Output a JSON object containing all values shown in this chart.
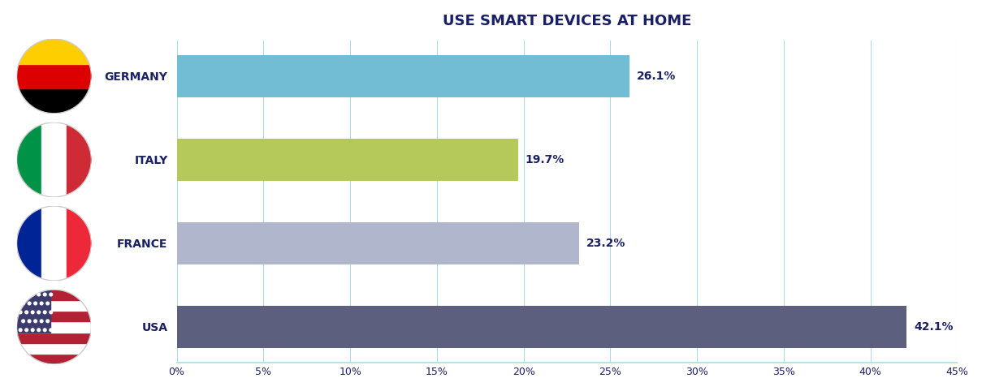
{
  "title": "USE SMART DEVICES AT HOME",
  "categories": [
    "USA",
    "FRANCE",
    "ITALY",
    "GERMANY"
  ],
  "values": [
    42.1,
    23.2,
    19.7,
    26.1
  ],
  "bar_colors": [
    "#5c5f7e",
    "#b0b7cc",
    "#b5c95a",
    "#72bcd4"
  ],
  "label_color": "#1a2066",
  "title_color": "#1a2066",
  "background_color": "#ffffff",
  "grid_color": "#a8dde8",
  "axis_color": "#a8dde8",
  "xlim": [
    0,
    45
  ],
  "xticks": [
    0,
    5,
    10,
    15,
    20,
    25,
    30,
    35,
    40,
    45
  ],
  "xtick_labels": [
    "0%",
    "5%",
    "10%",
    "15%",
    "20%",
    "25%",
    "30%",
    "35%",
    "40%",
    "45%"
  ],
  "bar_height": 0.5,
  "title_fontsize": 13,
  "label_fontsize": 10,
  "tick_fontsize": 9,
  "value_fontsize": 10,
  "flag_data": [
    {
      "country": "USA",
      "stripes": [
        [
          "#B22234",
          "#FFFFFF",
          "#B22234",
          "#FFFFFF",
          "#B22234",
          "#FFFFFF",
          "#B22234"
        ],
        "h"
      ],
      "canton": "#3C3B6E"
    },
    {
      "country": "FRANCE",
      "stripes": [
        "#002395",
        "#FFFFFF",
        "#ED2939"
      ],
      "orient": "v"
    },
    {
      "country": "ITALY",
      "stripes": [
        "#009246",
        "#FFFFFF",
        "#CE2B37"
      ],
      "orient": "v"
    },
    {
      "country": "GERMANY",
      "stripes": [
        "#000000",
        "#DD0000",
        "#FFCE00"
      ],
      "orient": "h"
    }
  ]
}
